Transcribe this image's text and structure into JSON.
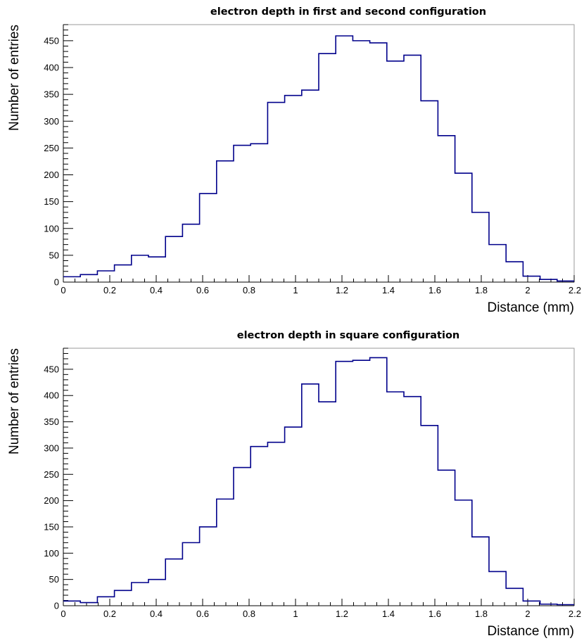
{
  "chart_data": [
    {
      "type": "bar",
      "title": "electron depth in first and second configuration",
      "xlabel": "Distance (mm)",
      "ylabel": "Number of entries",
      "xlim": [
        0,
        2.2
      ],
      "ylim": [
        0,
        480
      ],
      "xticks": [
        0,
        0.2,
        0.4,
        0.6,
        0.8,
        1,
        1.2,
        1.4,
        1.6,
        1.8,
        2,
        2.2
      ],
      "yticks": [
        0,
        50,
        100,
        150,
        200,
        250,
        300,
        350,
        400,
        450
      ],
      "bin_edges": [
        0,
        0.0733,
        0.1467,
        0.22,
        0.2933,
        0.3667,
        0.44,
        0.5133,
        0.5867,
        0.66,
        0.7333,
        0.8067,
        0.88,
        0.9533,
        1.0267,
        1.1,
        1.1733,
        1.2467,
        1.32,
        1.3933,
        1.4667,
        1.54,
        1.6133,
        1.6867,
        1.76,
        1.8333,
        1.9067,
        1.98,
        2.0533,
        2.1267,
        2.2
      ],
      "values": [
        10,
        14,
        21,
        32,
        50,
        47,
        85,
        108,
        165,
        226,
        255,
        258,
        335,
        348,
        358,
        426,
        459,
        450,
        446,
        412,
        423,
        338,
        273,
        203,
        130,
        70,
        38,
        11,
        5,
        2
      ]
    },
    {
      "type": "bar",
      "title": "electron depth in square configuration",
      "xlabel": "Distance (mm)",
      "ylabel": "Number of entries",
      "xlim": [
        0,
        2.2
      ],
      "ylim": [
        0,
        490
      ],
      "xticks": [
        0,
        0.2,
        0.4,
        0.6,
        0.8,
        1,
        1.2,
        1.4,
        1.6,
        1.8,
        2,
        2.2
      ],
      "yticks": [
        0,
        50,
        100,
        150,
        200,
        250,
        300,
        350,
        400,
        450
      ],
      "bin_edges": [
        0,
        0.0733,
        0.1467,
        0.22,
        0.2933,
        0.3667,
        0.44,
        0.5133,
        0.5867,
        0.66,
        0.7333,
        0.8067,
        0.88,
        0.9533,
        1.0267,
        1.1,
        1.1733,
        1.2467,
        1.32,
        1.3933,
        1.4667,
        1.54,
        1.6133,
        1.6867,
        1.76,
        1.8333,
        1.9067,
        1.98,
        2.0533,
        2.1267,
        2.2
      ],
      "values": [
        9,
        6,
        17,
        29,
        44,
        50,
        89,
        120,
        150,
        203,
        263,
        303,
        311,
        340,
        422,
        388,
        465,
        467,
        472,
        407,
        398,
        343,
        258,
        201,
        131,
        65,
        33,
        9,
        3,
        2
      ]
    }
  ]
}
